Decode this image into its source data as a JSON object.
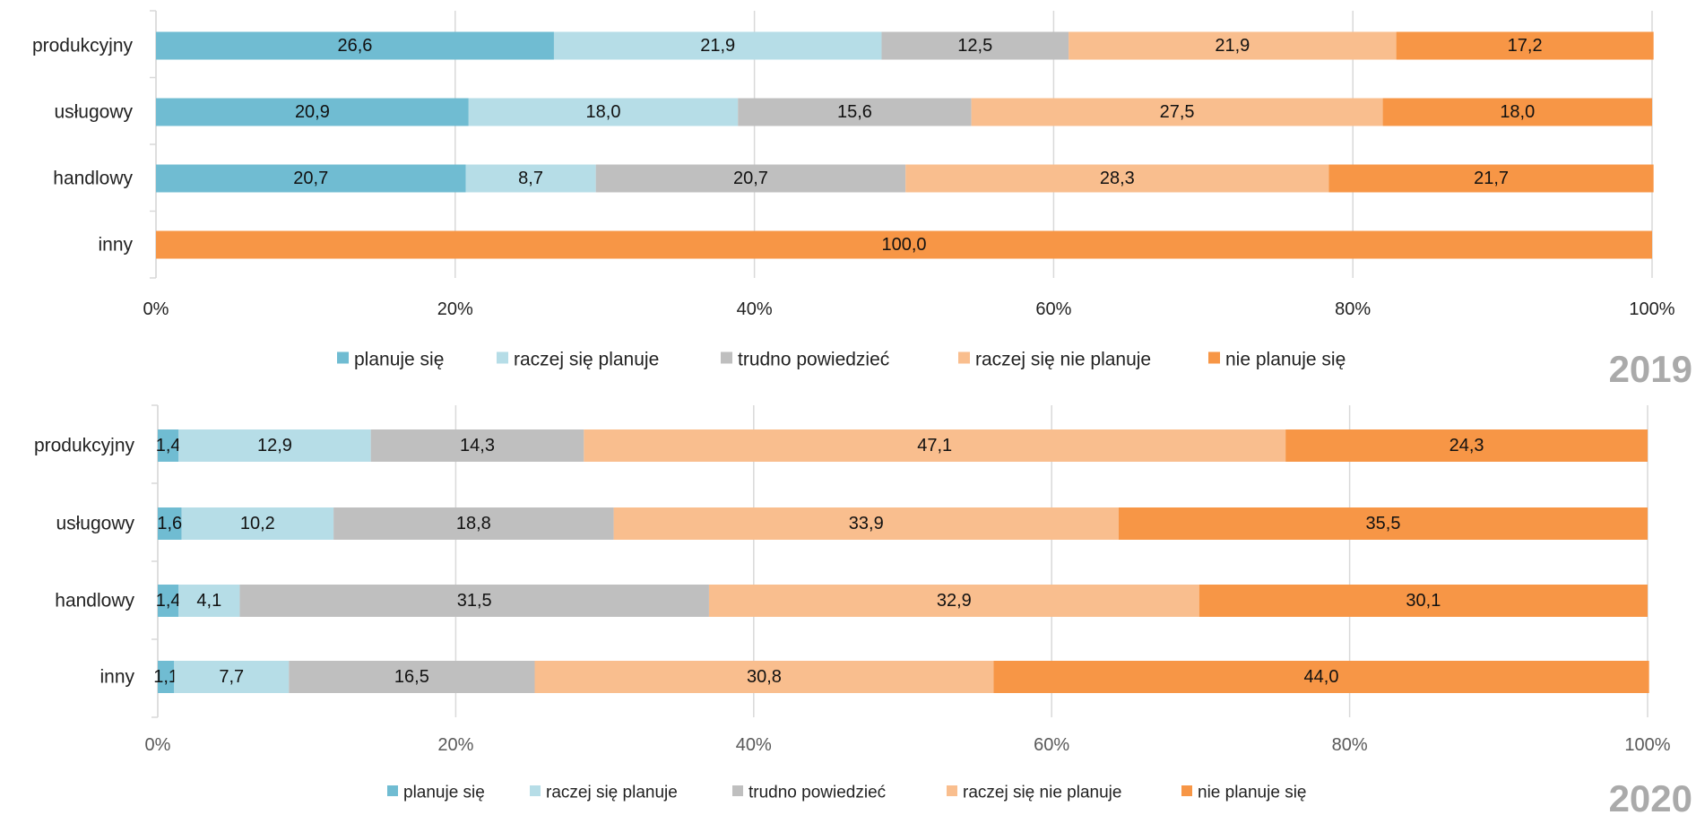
{
  "chart_data": [
    {
      "type": "bar",
      "orientation": "horizontal",
      "stacked": "percent",
      "year_label": "2019",
      "categories": [
        "produkcyjny",
        "usługowy",
        "handlowy",
        "inny"
      ],
      "series": [
        {
          "name": "planuje się",
          "color": "#70BCD2",
          "values": [
            26.6,
            20.9,
            20.7,
            0
          ],
          "labels": [
            "26,6",
            "20,9",
            "20,7",
            ""
          ]
        },
        {
          "name": "raczej się planuje",
          "color": "#B6DDE7",
          "values": [
            21.9,
            18.0,
            8.7,
            0
          ],
          "labels": [
            "21,9",
            "18,0",
            "8,7",
            ""
          ]
        },
        {
          "name": "trudno powiedzieć",
          "color": "#BFBFBF",
          "values": [
            12.5,
            15.6,
            20.7,
            0
          ],
          "labels": [
            "12,5",
            "15,6",
            "20,7",
            ""
          ]
        },
        {
          "name": "raczej się nie planuje",
          "color": "#F9BE8E",
          "values": [
            21.9,
            27.5,
            28.3,
            0
          ],
          "labels": [
            "21,9",
            "27,5",
            "28,3",
            ""
          ]
        },
        {
          "name": "nie planuje się",
          "color": "#F79646",
          "values": [
            17.2,
            18.0,
            21.7,
            100.0
          ],
          "labels": [
            "17,2",
            "18,0",
            "21,7",
            "100,0"
          ]
        }
      ],
      "xlim": [
        0,
        100
      ],
      "xticks": [
        "0%",
        "20%",
        "40%",
        "60%",
        "80%",
        "100%"
      ],
      "grid": true,
      "legend": "bottom"
    },
    {
      "type": "bar",
      "orientation": "horizontal",
      "stacked": "percent",
      "year_label": "2020",
      "categories": [
        "produkcyjny",
        "usługowy",
        "handlowy",
        "inny"
      ],
      "series": [
        {
          "name": "planuje się",
          "color": "#70BCD2",
          "values": [
            1.4,
            1.6,
            1.4,
            1.1
          ],
          "labels": [
            "1,4",
            "1,6",
            "1,4",
            "1,1"
          ]
        },
        {
          "name": "raczej się planuje",
          "color": "#B6DDE7",
          "values": [
            12.9,
            10.2,
            4.1,
            7.7
          ],
          "labels": [
            "12,9",
            "10,2",
            "4,1",
            "7,7"
          ]
        },
        {
          "name": "trudno powiedzieć",
          "color": "#BFBFBF",
          "values": [
            14.3,
            18.8,
            31.5,
            16.5
          ],
          "labels": [
            "14,3",
            "18,8",
            "31,5",
            "16,5"
          ]
        },
        {
          "name": "raczej się nie planuje",
          "color": "#F9BE8E",
          "values": [
            47.1,
            33.9,
            32.9,
            30.8
          ],
          "labels": [
            "47,1",
            "33,9",
            "32,9",
            "30,8"
          ]
        },
        {
          "name": "nie planuje się",
          "color": "#F79646",
          "values": [
            24.3,
            35.5,
            30.1,
            44.0
          ],
          "labels": [
            "24,3",
            "35,5",
            "30,1",
            "44,0"
          ]
        }
      ],
      "xlim": [
        0,
        100
      ],
      "xticks": [
        "0%",
        "20%",
        "40%",
        "60%",
        "80%",
        "100%"
      ],
      "grid": true,
      "legend": "bottom"
    }
  ]
}
